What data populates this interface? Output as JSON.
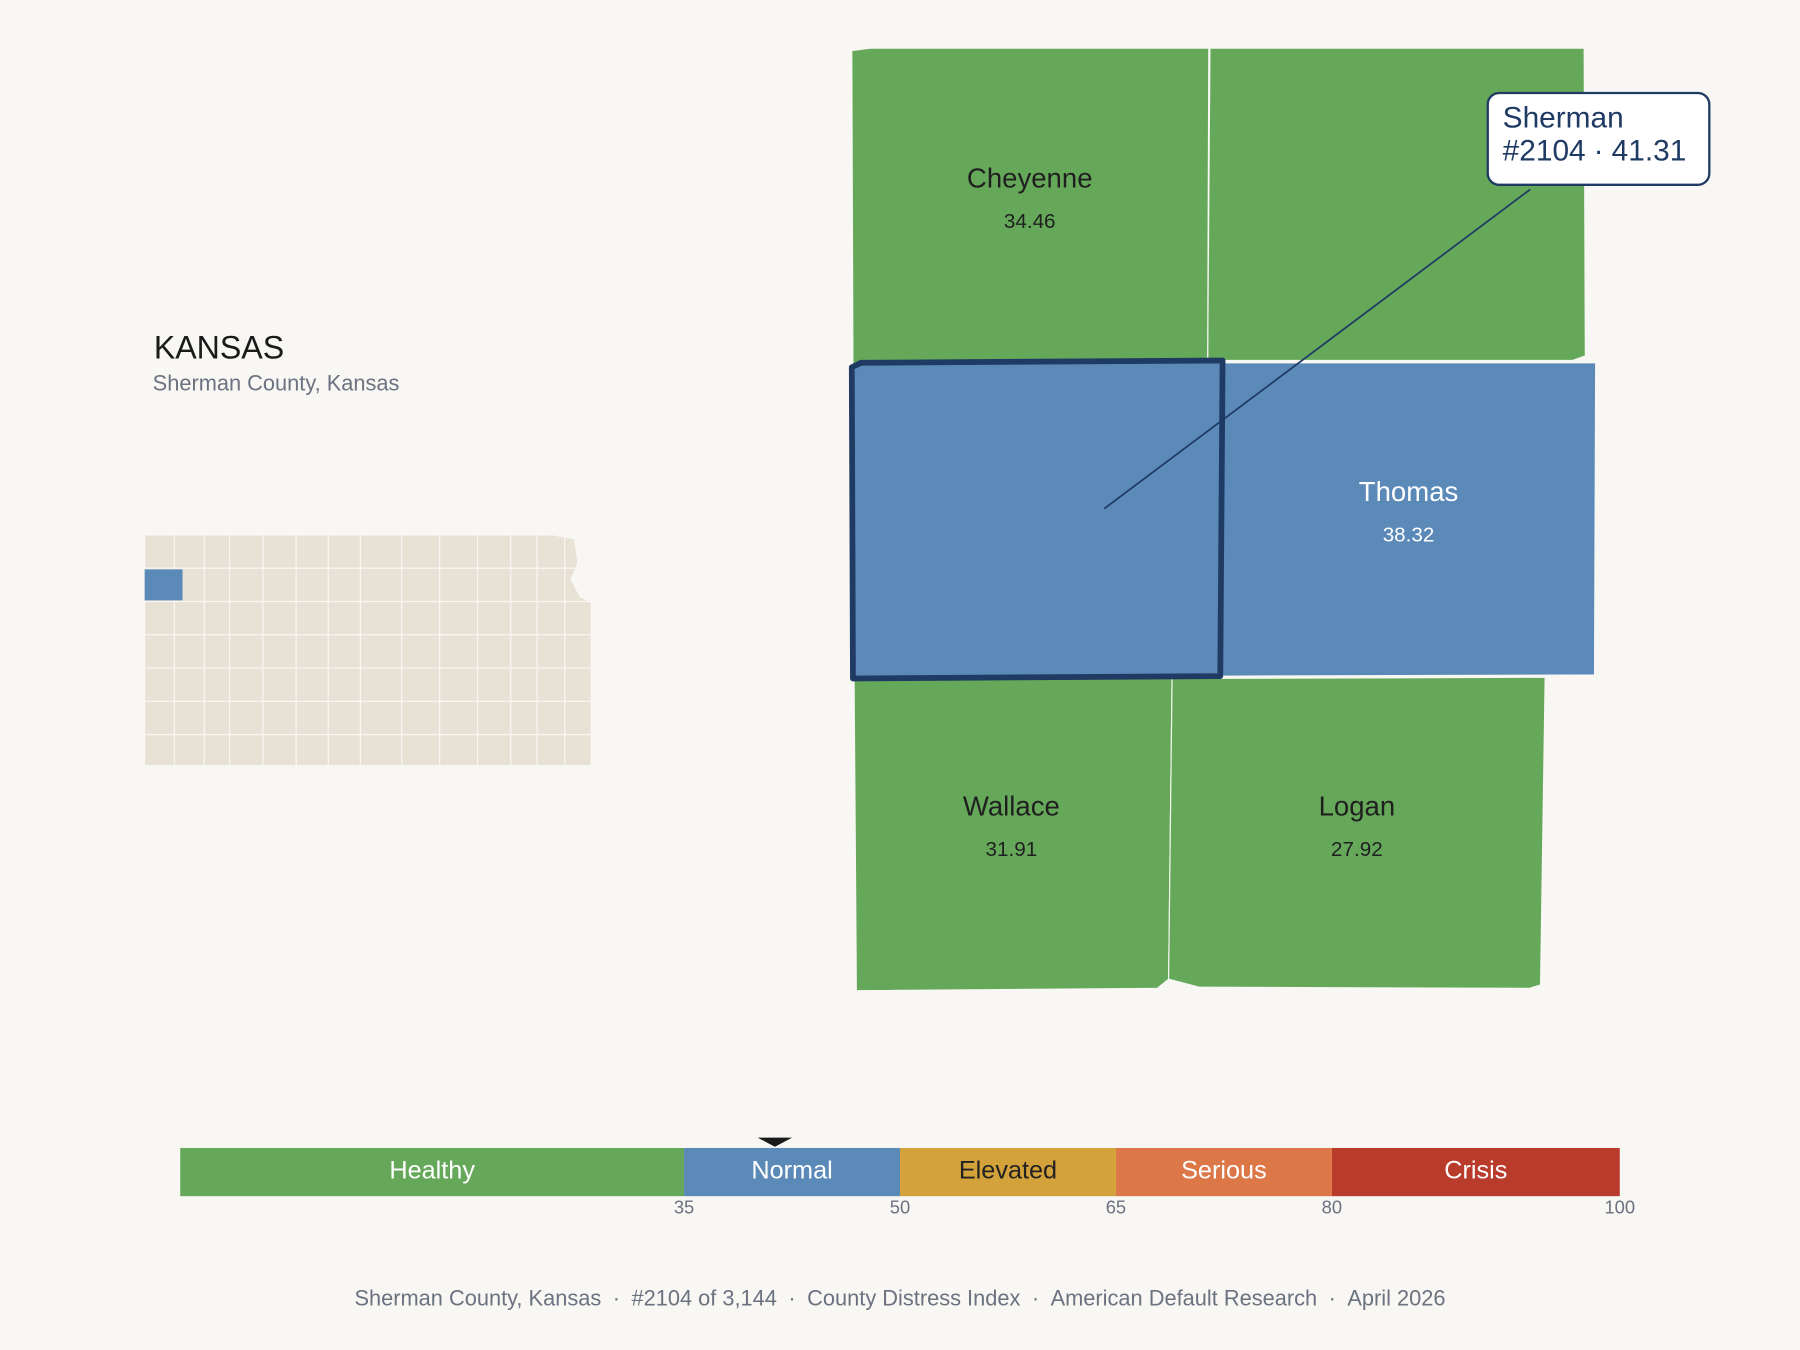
{
  "header": {
    "title": "KANSAS",
    "subtitle": "Sherman County, Kansas"
  },
  "selected": {
    "name": "Sherman",
    "rank": "#2104",
    "separator": "·",
    "value": 41.31
  },
  "counties": [
    {
      "name": "Cheyenne",
      "value": 34.46,
      "label_color": "#1f1f1f"
    },
    {
      "name": "Thomas",
      "value": 38.32,
      "label_color": "#ffffff"
    },
    {
      "name": "Wallace",
      "value": 31.91,
      "label_color": "#1f1f1f"
    },
    {
      "name": "Logan",
      "value": 27.92,
      "label_color": "#1f1f1f"
    }
  ],
  "scale": {
    "range": [
      0,
      100
    ],
    "ticks": [
      35,
      50,
      65,
      80,
      100
    ],
    "bands": [
      {
        "label": "Healthy",
        "color": "#66a85a",
        "text_color": "#ffffff"
      },
      {
        "label": "Normal",
        "color": "#5b89b8",
        "text_color": "#ffffff"
      },
      {
        "label": "Elevated",
        "color": "#d4a23a",
        "text_color": "#222222"
      },
      {
        "label": "Serious",
        "color": "#dc7748",
        "text_color": "#ffffff"
      },
      {
        "label": "Crisis",
        "color": "#b83b2b",
        "text_color": "#ffffff"
      }
    ]
  },
  "footer": {
    "separator": "·",
    "items": [
      "Sherman County, Kansas",
      "#2104 of 3,144",
      "County Distress Index",
      "American Default Research",
      "April 2026"
    ]
  }
}
